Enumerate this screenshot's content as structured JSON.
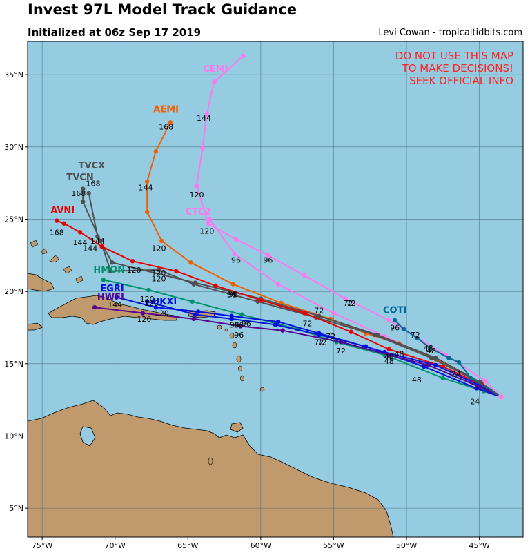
{
  "header": {
    "title": "Invest 97L Model Track Guidance",
    "subtitle": "Initialized at 06z Sep 17 2019",
    "credit": "Levi Cowan - tropicaltidbits.com"
  },
  "warning": [
    "DO NOT USE THIS MAP",
    "TO MAKE DECISIONS!",
    "SEEK OFFICIAL INFO"
  ],
  "colors": {
    "ocean": "#95cce2",
    "land": "#c09a6d",
    "grid": "#5a7f8f",
    "warning": "#ff2020"
  },
  "chart_data": {
    "type": "map-tracks",
    "lon_range": [
      -76,
      -42
    ],
    "lat_range": [
      3,
      37.3
    ],
    "lon_ticks": [
      -75,
      -70,
      -65,
      -60,
      -55,
      -50,
      -45
    ],
    "lon_tick_labels": [
      "75°W",
      "70°W",
      "65°W",
      "60°W",
      "55°W",
      "50°W",
      "45°W"
    ],
    "lat_ticks": [
      5,
      10,
      15,
      20,
      25,
      30,
      35
    ],
    "lat_tick_labels": [
      "5°N",
      "10°N",
      "15°N",
      "20°N",
      "25°N",
      "30°N",
      "35°N"
    ],
    "grid": true,
    "init_point": [
      -43.5,
      12.7
    ],
    "tracks": [
      {
        "name": "CEMI",
        "color": "#ff77ee",
        "points": [
          [
            -43.5,
            12.7
          ],
          [
            -44.6,
            13.8
          ],
          [
            -47.3,
            15.6
          ],
          [
            -51.2,
            18.0
          ],
          [
            -54.2,
            19.5
          ],
          [
            -57.0,
            21.1
          ],
          [
            -59.5,
            22.5
          ],
          [
            -61.7,
            23.6
          ],
          [
            -63.6,
            24.7
          ],
          [
            -64.4,
            27.3
          ],
          [
            -64.0,
            29.9
          ],
          [
            -63.7,
            32.3
          ],
          [
            -63.2,
            34.5
          ],
          [
            -61.2,
            36.3
          ]
        ],
        "labels": [
          {
            "text": "72",
            "lon": -54.0,
            "lat": 19.0
          },
          {
            "text": "96",
            "lon": -59.5,
            "lat": 22.0
          },
          {
            "text": "120",
            "lon": -63.7,
            "lat": 24.0
          },
          {
            "text": "120",
            "lon": -64.4,
            "lat": 26.5
          },
          {
            "text": "144",
            "lon": -63.9,
            "lat": 31.8
          }
        ],
        "name_pos": {
          "lon": -63.1,
          "lat": 35.2
        }
      },
      {
        "name": "CTC2",
        "color": "#ff77ee",
        "points": [
          [
            -43.5,
            12.7
          ],
          [
            -44.9,
            13.5
          ],
          [
            -47.8,
            15.2
          ],
          [
            -51.5,
            16.9
          ],
          [
            -55.0,
            18.5
          ],
          [
            -58.8,
            20.5
          ],
          [
            -61.8,
            22.6
          ],
          [
            -63.5,
            25.0
          ]
        ],
        "labels": [
          {
            "text": "48",
            "lon": -48.3,
            "lat": 15.7
          },
          {
            "text": "72",
            "lon": -53.8,
            "lat": 19.0
          },
          {
            "text": "96",
            "lon": -61.7,
            "lat": 22.0
          },
          {
            "text": "120",
            "lon": -63.7,
            "lat": 24.0
          }
        ],
        "name_pos": {
          "lon": -64.3,
          "lat": 25.3
        }
      },
      {
        "name": "AEMI",
        "color": "#f06000",
        "points": [
          [
            -43.5,
            12.7
          ],
          [
            -44.8,
            13.6
          ],
          [
            -48.0,
            15.3
          ],
          [
            -50.5,
            16.4
          ],
          [
            -52.8,
            17.1
          ],
          [
            -55.2,
            18.1
          ],
          [
            -58.6,
            19.2
          ],
          [
            -61.9,
            20.5
          ],
          [
            -64.8,
            22.0
          ],
          [
            -66.8,
            23.5
          ],
          [
            -67.8,
            25.5
          ],
          [
            -67.8,
            27.6
          ],
          [
            -67.2,
            29.7
          ],
          [
            -66.2,
            31.7
          ]
        ],
        "labels": [
          {
            "text": "72",
            "lon": -56.0,
            "lat": 18.5
          },
          {
            "text": "96",
            "lon": -61.9,
            "lat": 19.6
          },
          {
            "text": "120",
            "lon": -67.0,
            "lat": 22.8
          },
          {
            "text": "144",
            "lon": -67.9,
            "lat": 27.0
          },
          {
            "text": "168",
            "lon": -66.5,
            "lat": 31.2
          }
        ],
        "name_pos": {
          "lon": -66.5,
          "lat": 32.4
        }
      },
      {
        "name": "TVCX",
        "color": "#505050",
        "points": [
          [
            -43.5,
            12.7
          ],
          [
            -44.9,
            13.7
          ],
          [
            -48.0,
            15.4
          ],
          [
            -52.0,
            17.0
          ],
          [
            -56.0,
            18.3
          ],
          [
            -60.0,
            19.5
          ],
          [
            -64.5,
            20.6
          ],
          [
            -70.2,
            22.0
          ],
          [
            -71.2,
            23.8
          ],
          [
            -71.8,
            26.8
          ]
        ],
        "labels": [
          {
            "text": "96",
            "lon": -62.0,
            "lat": 19.6
          },
          {
            "text": "120",
            "lon": -67.0,
            "lat": 21.1
          },
          {
            "text": "144",
            "lon": -71.2,
            "lat": 23.3
          },
          {
            "text": "168",
            "lon": -71.5,
            "lat": 27.3
          }
        ],
        "name_pos": {
          "lon": -71.6,
          "lat": 28.5
        }
      },
      {
        "name": "TVCN",
        "color": "#505050",
        "points": [
          [
            -43.5,
            12.7
          ],
          [
            -45.0,
            13.7
          ],
          [
            -48.3,
            15.4
          ],
          [
            -52.2,
            17.0
          ],
          [
            -56.2,
            18.2
          ],
          [
            -60.2,
            19.3
          ],
          [
            -64.6,
            20.5
          ],
          [
            -67.0,
            21.5
          ],
          [
            -70.3,
            21.4
          ],
          [
            -71.0,
            23.5
          ],
          [
            -72.2,
            26.2
          ],
          [
            -72.2,
            27.1
          ]
        ],
        "labels": [
          {
            "text": "120",
            "lon": -67.0,
            "lat": 20.7
          },
          {
            "text": "144",
            "lon": -71.7,
            "lat": 22.8
          },
          {
            "text": "168",
            "lon": -72.5,
            "lat": 26.6
          }
        ],
        "name_pos": {
          "lon": -72.4,
          "lat": 27.7
        }
      },
      {
        "name": "AVNI",
        "color": "#e80000",
        "points": [
          [
            -43.5,
            12.7
          ],
          [
            -44.8,
            13.5
          ],
          [
            -47.5,
            14.8
          ],
          [
            -51.2,
            16.0
          ],
          [
            -53.8,
            17.2
          ],
          [
            -57.0,
            18.5
          ],
          [
            -60.0,
            19.4
          ],
          [
            -63.1,
            20.4
          ],
          [
            -65.8,
            21.4
          ],
          [
            -68.8,
            22.1
          ],
          [
            -70.9,
            23.1
          ],
          [
            -72.4,
            24.1
          ],
          [
            -73.5,
            24.7
          ],
          [
            -74.0,
            24.9
          ]
        ],
        "labels": [
          {
            "text": "72",
            "lon": -56.8,
            "lat": 17.6
          },
          {
            "text": "96",
            "lon": -62.0,
            "lat": 19.6
          },
          {
            "text": "120",
            "lon": -68.7,
            "lat": 21.3
          },
          {
            "text": "144",
            "lon": -72.4,
            "lat": 23.2
          },
          {
            "text": "168",
            "lon": -74.0,
            "lat": 23.9
          }
        ],
        "name_pos": {
          "lon": -73.6,
          "lat": 25.4
        }
      },
      {
        "name": "HMON",
        "color": "#00906a",
        "points": [
          [
            -43.5,
            12.7
          ],
          [
            -44.7,
            13.1
          ],
          [
            -47.5,
            14.0
          ],
          [
            -51.5,
            15.6
          ],
          [
            -54.8,
            16.5
          ],
          [
            -57.5,
            17.4
          ],
          [
            -61.3,
            18.4
          ],
          [
            -64.7,
            19.3
          ],
          [
            -67.7,
            20.1
          ],
          [
            -70.8,
            20.8
          ]
        ],
        "labels": [
          {
            "text": "24",
            "lon": -45.3,
            "lat": 12.2
          },
          {
            "text": "48",
            "lon": -49.3,
            "lat": 13.7
          },
          {
            "text": "72",
            "lon": -54.5,
            "lat": 15.7
          },
          {
            "text": "96",
            "lon": -61.5,
            "lat": 17.5
          },
          {
            "text": "120",
            "lon": -67.5,
            "lat": 19.0
          }
        ],
        "name_pos": {
          "lon": -70.4,
          "lat": 21.3
        }
      },
      {
        "name": "EGRI",
        "color": "#0010e0",
        "points": [
          [
            -43.5,
            12.7
          ],
          [
            -45.0,
            13.5
          ],
          [
            -48.0,
            14.9
          ],
          [
            -51.5,
            15.8
          ],
          [
            -56.0,
            17.1
          ],
          [
            -58.8,
            17.9
          ],
          [
            -62.0,
            18.3
          ],
          [
            -64.3,
            18.6
          ],
          [
            -67.2,
            18.9
          ],
          [
            -69.9,
            19.6
          ]
        ],
        "labels": [
          {
            "text": "48",
            "lon": -51.2,
            "lat": 15.3
          },
          {
            "text": "72",
            "lon": -56.0,
            "lat": 16.3
          },
          {
            "text": "96",
            "lon": -61.8,
            "lat": 17.5
          },
          {
            "text": "120",
            "lon": -67.8,
            "lat": 19.3
          },
          {
            "text": "144",
            "lon": -70.0,
            "lat": 18.9
          }
        ],
        "name_pos": {
          "lon": -70.2,
          "lat": 20.0
        }
      },
      {
        "name": "UKXI",
        "color": "#0010e0",
        "points": [
          [
            -43.5,
            12.7
          ],
          [
            -45.2,
            13.3
          ],
          [
            -48.8,
            14.8
          ],
          [
            -52.8,
            16.2
          ],
          [
            -56.0,
            17.0
          ],
          [
            -59.0,
            17.7
          ],
          [
            -62.0,
            18.1
          ],
          [
            -64.5,
            18.4
          ],
          [
            -67.8,
            19.3
          ]
        ],
        "labels": [
          {
            "text": "48",
            "lon": -50.5,
            "lat": 15.5
          },
          {
            "text": "72",
            "lon": -55.8,
            "lat": 16.3
          },
          {
            "text": "96",
            "lon": -61.0,
            "lat": 17.6
          },
          {
            "text": "120",
            "lon": -66.8,
            "lat": 18.3
          }
        ],
        "name_pos": {
          "lon": -66.6,
          "lat": 19.1
        }
      },
      {
        "name": "HWFI",
        "color": "#5a0090",
        "points": [
          [
            -43.5,
            12.7
          ],
          [
            -45.0,
            13.4
          ],
          [
            -48.5,
            14.9
          ],
          [
            -51.2,
            15.6
          ],
          [
            -54.5,
            16.5
          ],
          [
            -58.5,
            17.3
          ],
          [
            -61.4,
            17.6
          ],
          [
            -64.6,
            18.1
          ],
          [
            -68.1,
            18.5
          ],
          [
            -71.4,
            18.9
          ]
        ],
        "labels": [
          {
            "text": "48",
            "lon": -51.2,
            "lat": 15.0
          },
          {
            "text": "72",
            "lon": -55.2,
            "lat": 16.7
          },
          {
            "text": "96",
            "lon": -61.5,
            "lat": 16.8
          },
          {
            "text": "120",
            "lon": -68.0,
            "lat": 17.9
          }
        ],
        "name_pos": {
          "lon": -70.3,
          "lat": 19.4
        }
      },
      {
        "name": "COTI",
        "color": "#006a96",
        "points": [
          [
            -43.5,
            12.7
          ],
          [
            -45.6,
            14.0
          ],
          [
            -46.4,
            15.1
          ],
          [
            -47.1,
            15.4
          ],
          [
            -48.4,
            16.1
          ],
          [
            -49.3,
            16.8
          ],
          [
            -50.2,
            17.4
          ],
          [
            -50.8,
            18.0
          ]
        ],
        "labels": [
          {
            "text": "24",
            "lon": -46.6,
            "lat": 14.1
          },
          {
            "text": "48",
            "lon": -48.5,
            "lat": 15.9
          },
          {
            "text": "72",
            "lon": -49.4,
            "lat": 16.8
          },
          {
            "text": "96",
            "lon": -50.8,
            "lat": 17.3
          }
        ],
        "name_pos": {
          "lon": -50.8,
          "lat": 18.5
        }
      }
    ]
  }
}
